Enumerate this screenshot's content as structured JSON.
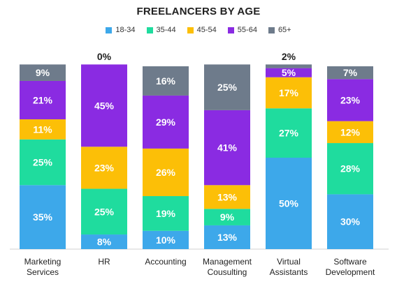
{
  "chart_data": {
    "type": "bar",
    "stacked": true,
    "percent_stacked": true,
    "title": "FREELANCERS BY AGE",
    "categories": [
      [
        "Marketing",
        "Services"
      ],
      [
        "HR"
      ],
      [
        "Accounting"
      ],
      [
        "Management",
        "Cousulting"
      ],
      [
        "Virtual",
        "Assistants"
      ],
      [
        "Software",
        "Development"
      ]
    ],
    "series": [
      {
        "name": "18-34",
        "color": "#3da8ea",
        "values": [
          35,
          8,
          10,
          13,
          50,
          30
        ]
      },
      {
        "name": "35-44",
        "color": "#1fdc9e",
        "values": [
          25,
          25,
          19,
          9,
          27,
          28
        ]
      },
      {
        "name": "45-54",
        "color": "#fcbf07",
        "values": [
          11,
          23,
          26,
          13,
          17,
          12
        ]
      },
      {
        "name": "55-64",
        "color": "#8a2be2",
        "values": [
          21,
          45,
          29,
          41,
          5,
          23
        ]
      },
      {
        "name": "65+",
        "color": "#6e7b8b",
        "values": [
          9,
          0,
          16,
          25,
          2,
          7
        ]
      }
    ],
    "top_labels": [
      "",
      "0%",
      "",
      "",
      "2%",
      ""
    ],
    "value_suffix": "%",
    "ylim": [
      0,
      100
    ],
    "legend_position": "top-center",
    "grid": false
  }
}
